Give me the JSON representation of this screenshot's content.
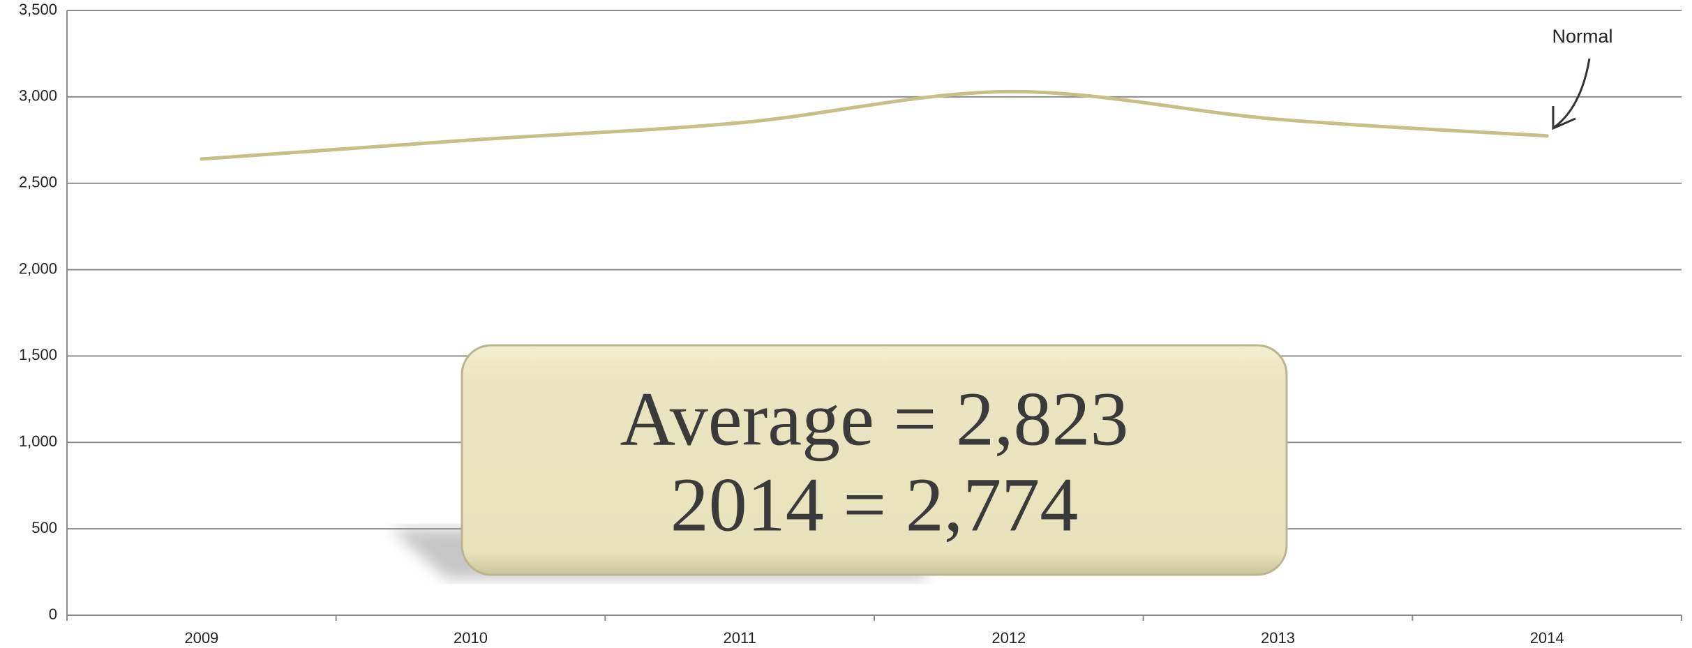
{
  "chart_data": {
    "type": "line",
    "categories": [
      "2009",
      "2010",
      "2011",
      "2012",
      "2013",
      "2014"
    ],
    "series": [
      {
        "name": "Normal",
        "color": "#c7bf88",
        "values": [
          2640,
          2750,
          2850,
          3030,
          2870,
          2774
        ]
      }
    ],
    "ylim": [
      0,
      3500
    ],
    "yticks": [
      0,
      500,
      {
        "value": 1000,
        "label": "1,000"
      },
      {
        "value": 1500,
        "label": "1,500"
      },
      {
        "value": 2000,
        "label": "2,000"
      },
      {
        "value": 2500,
        "label": "2,500"
      },
      {
        "value": 3000,
        "label": "3,000"
      },
      {
        "value": 3500,
        "label": "3,500"
      }
    ],
    "grid": true,
    "annotations": [
      "Average = 2,823",
      "2014 = 2,774"
    ]
  }
}
